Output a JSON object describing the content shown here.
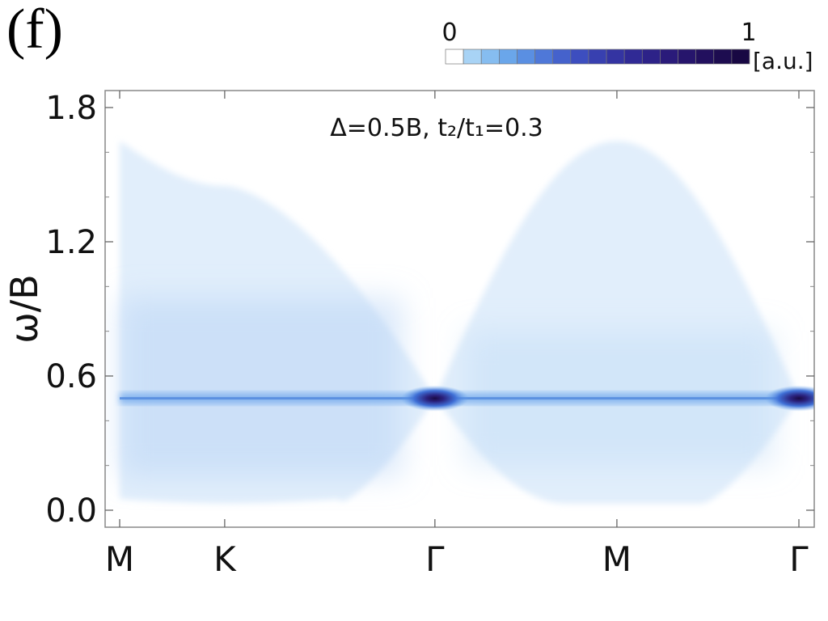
{
  "panel_label": "(f)",
  "colorbar": {
    "min_label": "0",
    "max_label": "1",
    "unit_label": "[a.u.]",
    "colors": [
      "#ffffff",
      "#a8d3f5",
      "#86bdf0",
      "#6aa6ea",
      "#5a8fe2",
      "#4f78d8",
      "#4562cc",
      "#3d4ebf",
      "#3840b0",
      "#3434a2",
      "#302a95",
      "#2d2288",
      "#2a1b7a",
      "#26156c",
      "#22105e",
      "#1d0c50",
      "#180843"
    ]
  },
  "chart_data": {
    "type": "heatmap",
    "title": "",
    "annotation": "Δ=0.5B, t₂/t₁=0.3",
    "xlabel": "",
    "ylabel": "ω/B",
    "ylim": [
      -0.1,
      1.9
    ],
    "yticks": [
      0.0,
      0.6,
      1.2,
      1.8
    ],
    "ytick_labels": [
      "0.0",
      "0.6",
      "1.2",
      "1.8"
    ],
    "x_path_labels": [
      "M",
      "K",
      "Γ",
      "M",
      "Γ"
    ],
    "x_path_positions": [
      0,
      0.577,
      1.732,
      2.732,
      3.732
    ],
    "colorbar_range": [
      0,
      1
    ],
    "colormap": "white-to-dark-purple",
    "features": {
      "flat_band_energy": 0.5,
      "intensity_peaks": [
        {
          "x_label": "Γ",
          "x": 1.732,
          "omega": 0.5,
          "intensity": 1.0
        },
        {
          "x_label": "Γ",
          "x": 3.732,
          "omega": 0.5,
          "intensity": 1.0
        }
      ],
      "upper_continuum_edge": [
        {
          "x": 0,
          "omega": 1.65
        },
        {
          "x": 0.577,
          "omega": 1.45
        },
        {
          "x": 1.732,
          "omega": 0.5
        },
        {
          "x": 2.732,
          "omega": 1.65
        },
        {
          "x": 3.732,
          "omega": 0.5
        }
      ],
      "lower_continuum_edge": [
        {
          "x": 0,
          "omega": 0.05
        },
        {
          "x": 0.577,
          "omega": 0.03
        },
        {
          "x": 1.732,
          "omega": 0.5
        },
        {
          "x": 2.732,
          "omega": 0.03
        },
        {
          "x": 3.732,
          "omega": 0.5
        }
      ]
    }
  }
}
